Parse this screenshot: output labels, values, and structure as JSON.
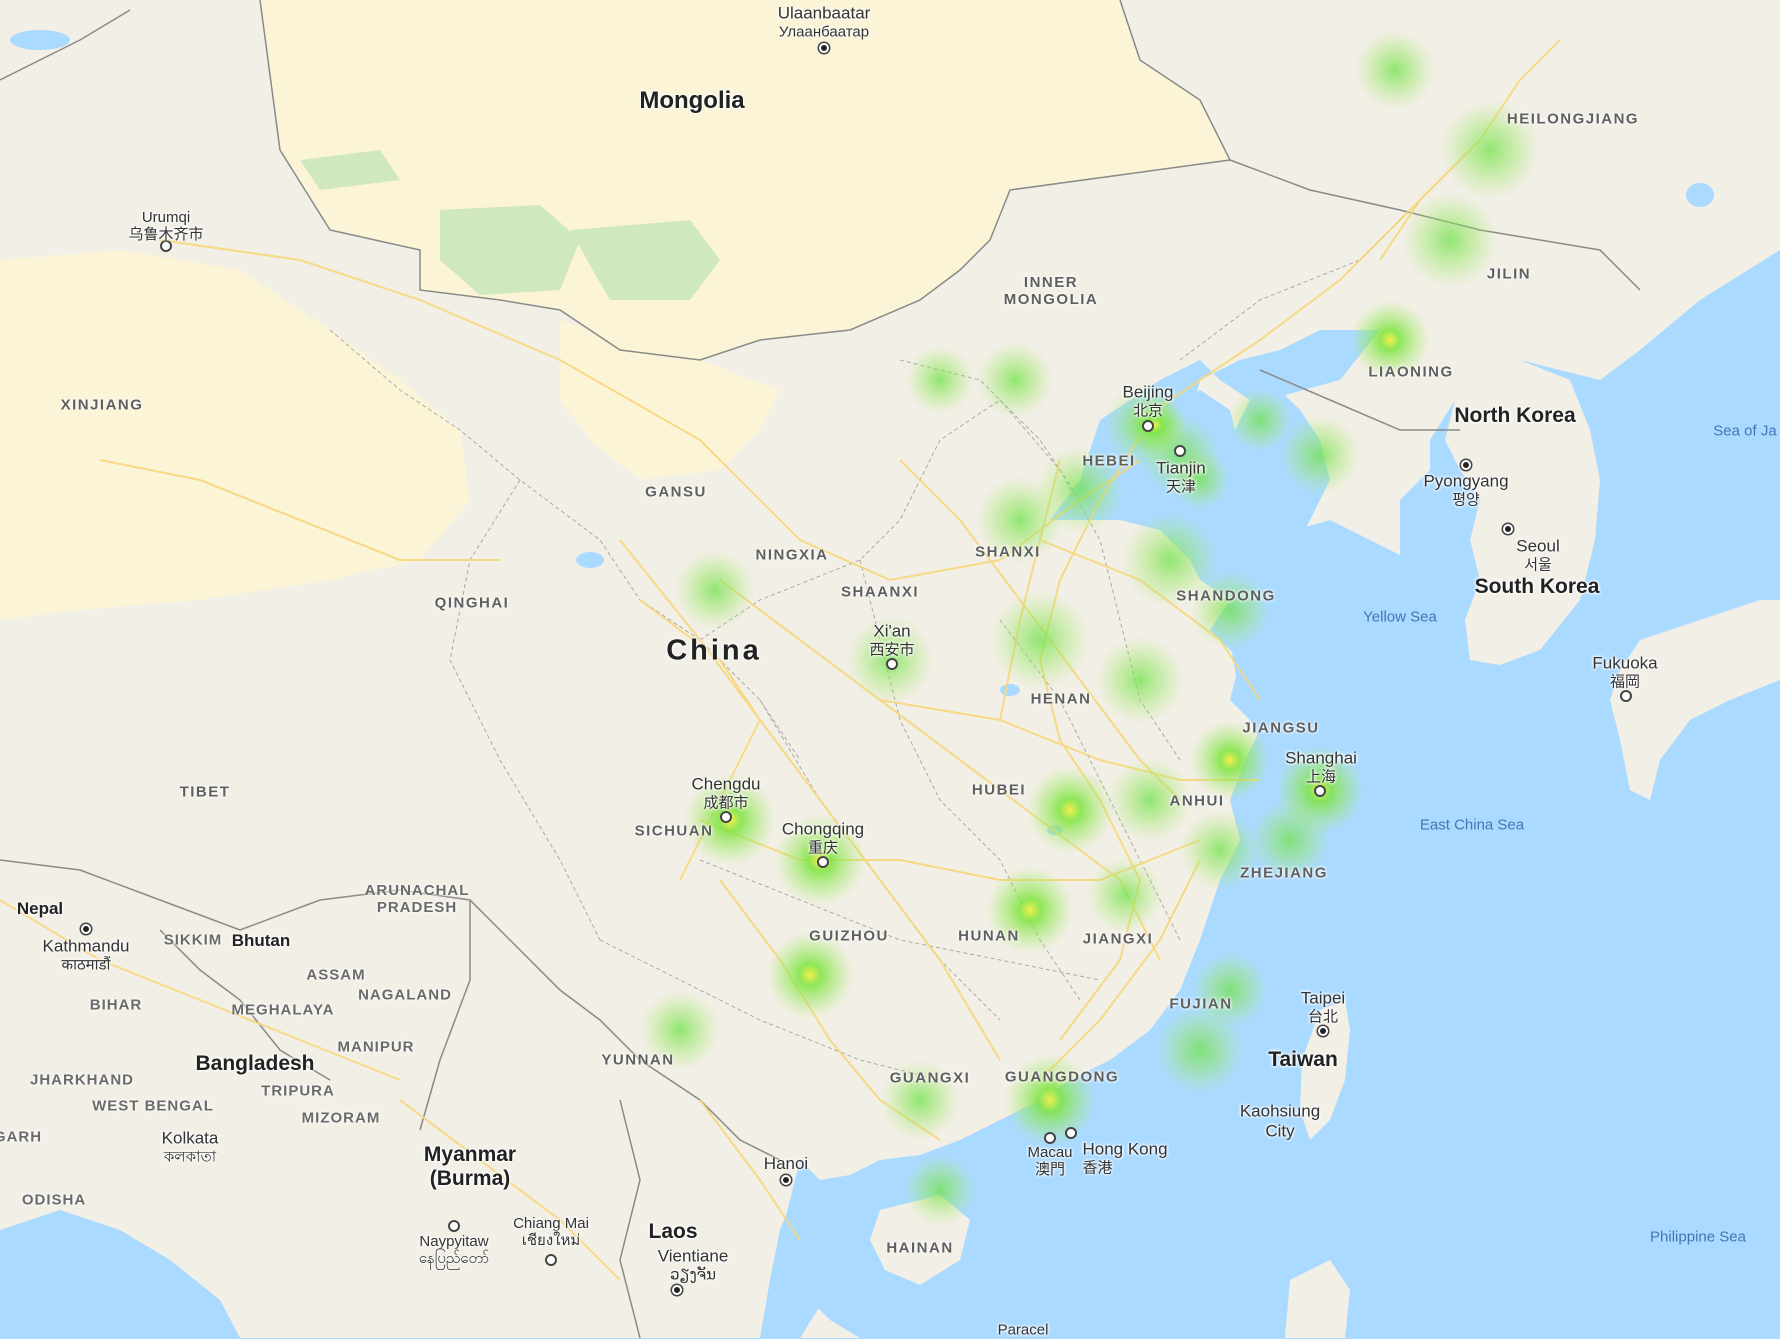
{
  "map": {
    "heat_color": "#6ee34a",
    "heat_core_color": "#f4f046",
    "land_color": "#f2efe6",
    "water_color": "#aadaff",
    "road_color": "#f7d77a",
    "park_color": "#cfe8c0",
    "desert_color": "#fbf4d6"
  },
  "labels": {
    "mongolia": "Mongolia",
    "china": "China",
    "north_korea": "North Korea",
    "south_korea": "South Korea",
    "taiwan": "Taiwan",
    "bangladesh": "Bangladesh",
    "myanmar": "Myanmar",
    "myanmar_alt": "(Burma)",
    "laos": "Laos",
    "nepal": "Nepal",
    "bhutan": "Bhutan",
    "heilongjiang": "HEILONGJIANG",
    "jilin": "JILIN",
    "liaoning": "LIAONING",
    "inner_mongolia_1": "INNER",
    "inner_mongolia_2": "MONGOLIA",
    "xinjiang": "XINJIANG",
    "gansu": "GANSU",
    "ningxia": "NINGXIA",
    "qinghai": "QINGHAI",
    "shaanxi": "SHAANXI",
    "shanxi": "SHANXI",
    "hebei": "HEBEI",
    "shandong": "SHANDONG",
    "henan": "HENAN",
    "jiangsu": "JIANGSU",
    "anhui": "ANHUI",
    "hubei": "HUBEI",
    "sichuan": "SICHUAN",
    "tibet": "TIBET",
    "zhejiang": "ZHEJIANG",
    "hunan": "HUNAN",
    "jiangxi": "JIANGXI",
    "guizhou": "GUIZHOU",
    "fujian": "FUJIAN",
    "yunnan": "YUNNAN",
    "guangxi": "GUANGXI",
    "guangdong": "GUANGDONG",
    "hainan": "HAINAN",
    "arunachal_1": "ARUNACHAL",
    "arunachal_2": "PRADESH",
    "sikkim": "SIKKIM",
    "assam": "ASSAM",
    "bihar": "BIHAR",
    "meghalaya": "MEGHALAYA",
    "nagaland": "NAGALAND",
    "manipur": "MANIPUR",
    "jharkhand": "JHARKHAND",
    "west_bengal": "WEST BENGAL",
    "tripura": "TRIPURA",
    "mizoram": "MIZORAM",
    "garh": "GARH",
    "odisha": "ODISHA",
    "yellow_sea": "Yellow Sea",
    "east_china_sea": "East China Sea",
    "sea_of_japan": "Sea of Ja",
    "philippine_sea": "Philippine Sea",
    "paracel": "Paracel"
  },
  "cities": {
    "ulaanbaatar": "Ulaanbaatar",
    "ulaanbaatar_local": "Улаанбаатар",
    "urumqi": "Urumqi",
    "urumqi_local": "乌鲁木齐市",
    "beijing": "Beijing",
    "beijing_local": "北京",
    "tianjin": "Tianjin",
    "tianjin_local": "天津",
    "pyongyang": "Pyongyang",
    "pyongyang_local": "평양",
    "seoul": "Seoul",
    "seoul_local": "서울",
    "xian": "Xi'an",
    "xian_local": "西安市",
    "shanghai": "Shanghai",
    "shanghai_local": "上海",
    "chengdu": "Chengdu",
    "chengdu_local": "成都市",
    "chongqing": "Chongqing",
    "chongqing_local": "重庆",
    "fukuoka": "Fukuoka",
    "fukuoka_local": "福岡",
    "kathmandu": "Kathmandu",
    "kathmandu_local": "काठमाडौं",
    "taipei": "Taipei",
    "taipei_local": "台北",
    "kaohsiung_1": "Kaohsiung",
    "kaohsiung_2": "City",
    "kolkata": "Kolkata",
    "kolkata_local": "কলকাতা",
    "hanoi": "Hanoi",
    "macau": "Macau",
    "macau_local": "澳門",
    "hong_kong": "Hong Kong",
    "hong_kong_local": "香港",
    "chiang_mai": "Chiang Mai",
    "chiang_mai_local_1": "เชียงใหม่",
    "naypyitaw": "Naypyitaw",
    "naypyitaw_local": "နေပြည်တော်",
    "vientiane": "Vientiane",
    "vientiane_local": "ວຽງຈັນ"
  }
}
